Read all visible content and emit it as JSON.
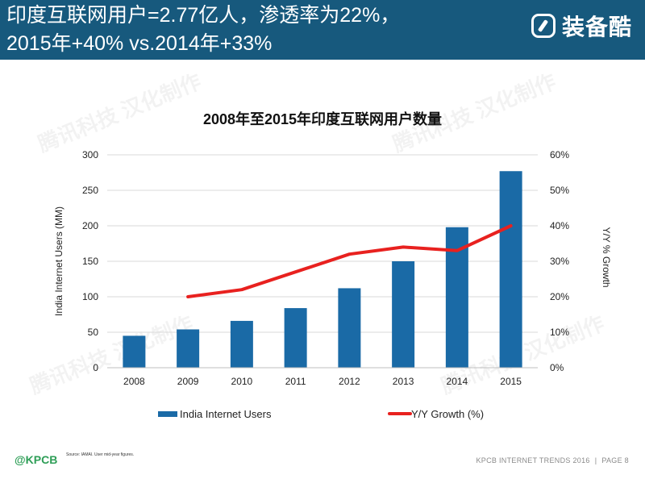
{
  "header": {
    "title_line1": "印度互联网用户=2.77亿人，渗透率为22%，",
    "title_line2": "2015年+40% vs.2014年+33%",
    "logo_text": "装备酷"
  },
  "footer": {
    "brand": "@KPCB",
    "source": "Source: IAMAI. User mid-year figures.",
    "report": "KPCB INTERNET TRENDS 2016",
    "separator": "|",
    "page": "PAGE 8"
  },
  "watermark_text": "腾讯科技 汉化制作",
  "colors": {
    "header_bg": "#17597d",
    "bar": "#1a6aa6",
    "line": "#e8211f",
    "brand_green": "#2e9e57"
  },
  "chart_data": {
    "type": "bar",
    "title": "2008年至2015年印度互联网用户数量",
    "categories": [
      "2008",
      "2009",
      "2010",
      "2011",
      "2012",
      "2013",
      "2014",
      "2015"
    ],
    "ylabel": "India Internet Users (MM)",
    "y2label": "Y/Y % Growth",
    "ylim": [
      0,
      300
    ],
    "y_ticks": [
      "0",
      "50",
      "100",
      "150",
      "200",
      "250",
      "300"
    ],
    "y2lim": [
      0,
      60
    ],
    "y2_ticks": [
      "0%",
      "10%",
      "20%",
      "30%",
      "40%",
      "50%",
      "60%"
    ],
    "grid": true,
    "legend_position": "bottom",
    "series": [
      {
        "name": "India Internet Users",
        "type": "bar",
        "axis": "left",
        "values": [
          45,
          54,
          66,
          84,
          112,
          150,
          198,
          277
        ]
      },
      {
        "name": "Y/Y Growth (%)",
        "type": "line",
        "axis": "right",
        "values": [
          null,
          20,
          22,
          27,
          32,
          34,
          33,
          40
        ]
      }
    ]
  }
}
